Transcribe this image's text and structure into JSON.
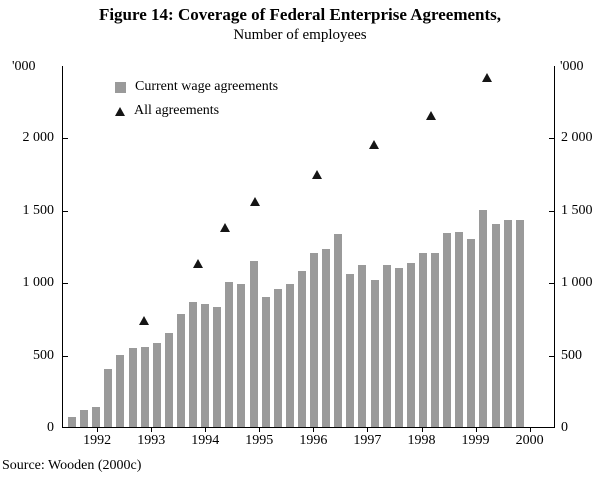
{
  "chart_data": {
    "type": "bar",
    "title": "Figure 14: Coverage of Federal Enterprise Agreements,",
    "subtitle": "Number of employees",
    "source_note": "Source: Wooden (2000c)",
    "unit_label": "'000",
    "legend": [
      "Current wage agreements",
      "All agreements"
    ],
    "legend_position": "top-left-inside",
    "grid": false,
    "bar_color": "#9a9a9a",
    "marker_color": "#151515",
    "ylim": [
      0,
      2500
    ],
    "xlim": [
      1991.35,
      2000.47
    ],
    "y_ticks": [
      {
        "value": 0,
        "label": "0"
      },
      {
        "value": 500,
        "label": "500"
      },
      {
        "value": 1000,
        "label": "1 000"
      },
      {
        "value": 1500,
        "label": "1 500"
      },
      {
        "value": 2000,
        "label": "2 000"
      }
    ],
    "x_ticks": [
      {
        "value": 1992,
        "label": "1992"
      },
      {
        "value": 1993,
        "label": "1993"
      },
      {
        "value": 1994,
        "label": "1994"
      },
      {
        "value": 1995,
        "label": "1995"
      },
      {
        "value": 1996,
        "label": "1996"
      },
      {
        "value": 1997,
        "label": "1997"
      },
      {
        "value": 1998,
        "label": "1998"
      },
      {
        "value": 1999,
        "label": "1999"
      },
      {
        "value": 2000,
        "label": "2000"
      }
    ],
    "series": [
      {
        "name": "Current wage agreements",
        "type": "bar",
        "frequency": "quarterly",
        "values": [
          70,
          115,
          140,
          400,
          500,
          545,
          555,
          580,
          650,
          780,
          865,
          850,
          830,
          1000,
          990,
          1150,
          895,
          950,
          990,
          1080,
          1200,
          1230,
          1330,
          1060,
          1120,
          1015,
          1120,
          1100,
          1130,
          1200,
          1200,
          1340,
          1350,
          1300,
          1500,
          1400,
          1430,
          1430
        ]
      },
      {
        "name": "All agreements",
        "type": "scatter",
        "marker": "triangle-up",
        "points": [
          {
            "x": 1992.85,
            "y": 740
          },
          {
            "x": 1993.85,
            "y": 1130
          },
          {
            "x": 1994.35,
            "y": 1385
          },
          {
            "x": 1994.9,
            "y": 1560
          },
          {
            "x": 1996.05,
            "y": 1745
          },
          {
            "x": 1997.1,
            "y": 1955
          },
          {
            "x": 1998.15,
            "y": 2155
          },
          {
            "x": 1999.2,
            "y": 2420
          }
        ]
      }
    ]
  }
}
